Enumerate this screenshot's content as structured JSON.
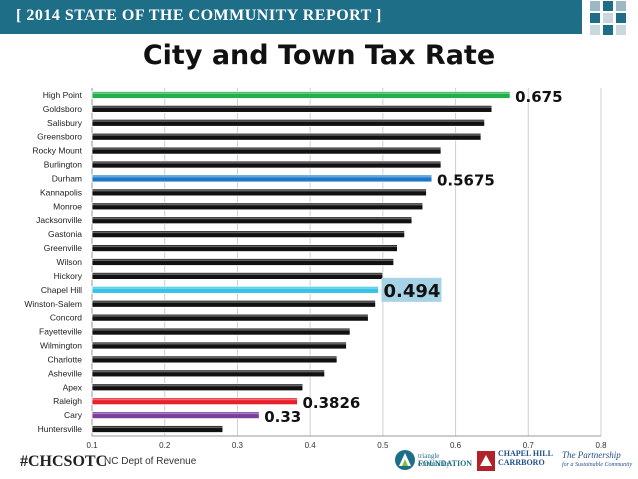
{
  "header": {
    "banner_text": "[ 2014 STATE OF THE COMMUNITY REPORT ]",
    "banner_color": "#1f6e87"
  },
  "chart_data": {
    "type": "bar",
    "orientation": "horizontal",
    "title": "City and Town Tax Rate",
    "xlim": [
      0.1,
      0.8
    ],
    "x_ticks": [
      "0.1",
      "0.2",
      "0.3",
      "0.4",
      "0.5",
      "0.6",
      "0.7",
      "0.8"
    ],
    "grid": true,
    "categories": [
      "High Point",
      "Goldsboro",
      "Salisbury",
      "Greensboro",
      "Rocky Mount",
      "Burlington",
      "Durham",
      "Kannapolis",
      "Monroe",
      "Jacksonville",
      "Gastonia",
      "Greenville",
      "Wilson",
      "Hickory",
      "Chapel Hill",
      "Winston-Salem",
      "Concord",
      "Fayetteville",
      "Wilmington",
      "Charlotte",
      "Asheville",
      "Apex",
      "Raleigh",
      "Cary",
      "Huntersville"
    ],
    "values": [
      0.675,
      0.65,
      0.64,
      0.635,
      0.58,
      0.58,
      0.5675,
      0.56,
      0.555,
      0.54,
      0.53,
      0.52,
      0.515,
      0.5,
      0.494,
      0.49,
      0.48,
      0.455,
      0.45,
      0.437,
      0.42,
      0.39,
      0.3826,
      0.33,
      0.28
    ],
    "bar_colors": [
      "#22b04c",
      "#111111",
      "#111111",
      "#111111",
      "#111111",
      "#111111",
      "#1e78c8",
      "#111111",
      "#111111",
      "#111111",
      "#111111",
      "#111111",
      "#111111",
      "#111111",
      "#35c3ea",
      "#111111",
      "#111111",
      "#111111",
      "#111111",
      "#111111",
      "#111111",
      "#111111",
      "#e8202a",
      "#7a3ea0",
      "#111111"
    ],
    "annotations": [
      {
        "category": "High Point",
        "text": "0.675"
      },
      {
        "category": "Durham",
        "text": "0.5675"
      },
      {
        "category": "Chapel Hill",
        "text": "0.494",
        "highlight": "#a6d4e6"
      },
      {
        "category": "Raleigh",
        "text": "0.3826"
      },
      {
        "category": "Cary",
        "text": "0.33"
      }
    ]
  },
  "footer": {
    "hashtag": "#CHCSOTC",
    "source": "NC Dept of Revenue",
    "logos": {
      "triangle": [
        "triangle community",
        "FOUNDATION"
      ],
      "chamber": [
        "CHAPEL HILL",
        "CARRBORO"
      ],
      "partnership": [
        "The Partnership",
        "for a Sustainable Community"
      ]
    }
  }
}
